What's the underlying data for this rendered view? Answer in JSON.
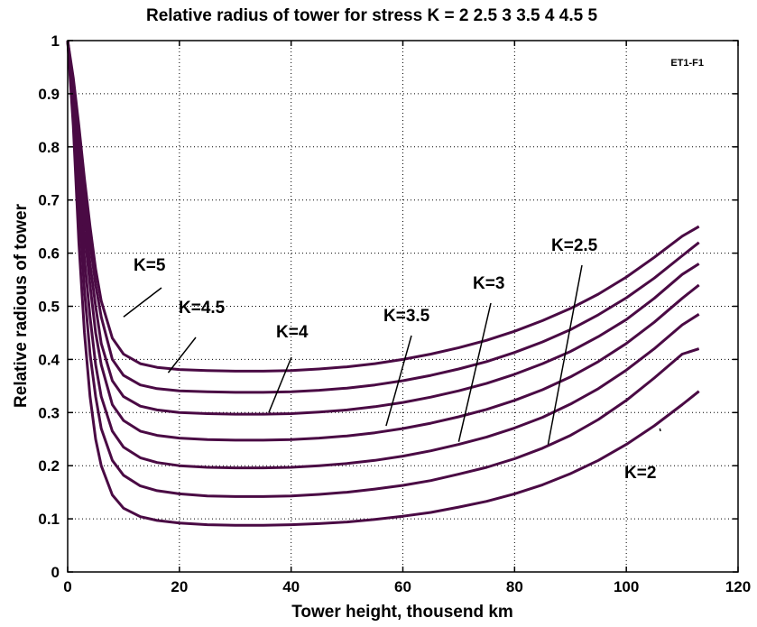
{
  "chart_data": {
    "type": "line",
    "title": "Relative radius of tower for stress K = 2  2.5  3  3.5  4  4.5  5",
    "xlabel": "Tower height, thousend km",
    "ylabel": "Relative radious of tower",
    "id_tag": "ET1-F1",
    "xlim": [
      0,
      120
    ],
    "ylim": [
      0,
      1
    ],
    "x_ticks": [
      0,
      20,
      40,
      60,
      80,
      100,
      120
    ],
    "y_ticks": [
      0,
      0.1,
      0.2,
      0.3,
      0.4,
      0.5,
      0.6,
      0.7,
      0.8,
      0.9,
      1
    ],
    "grid": true,
    "series": [
      {
        "name": "K=2",
        "x": [
          0,
          1,
          2,
          3,
          4,
          5,
          6,
          8,
          10,
          13,
          16,
          20,
          25,
          30,
          35,
          40,
          45,
          50,
          55,
          60,
          65,
          70,
          75,
          80,
          85,
          90,
          95,
          100,
          105,
          110,
          113
        ],
        "y": [
          1,
          0.84,
          0.62,
          0.45,
          0.33,
          0.25,
          0.2,
          0.145,
          0.12,
          0.104,
          0.097,
          0.092,
          0.089,
          0.088,
          0.088,
          0.089,
          0.091,
          0.094,
          0.099,
          0.105,
          0.112,
          0.122,
          0.133,
          0.147,
          0.164,
          0.185,
          0.21,
          0.24,
          0.275,
          0.315,
          0.34
        ]
      },
      {
        "name": "K=2.5",
        "x": [
          0,
          1,
          2,
          3,
          4,
          5,
          6,
          8,
          10,
          13,
          16,
          20,
          25,
          30,
          35,
          40,
          45,
          50,
          55,
          60,
          65,
          70,
          75,
          80,
          85,
          90,
          95,
          100,
          105,
          110,
          113
        ],
        "y": [
          1,
          0.87,
          0.69,
          0.53,
          0.41,
          0.33,
          0.27,
          0.21,
          0.182,
          0.162,
          0.153,
          0.147,
          0.143,
          0.142,
          0.142,
          0.143,
          0.146,
          0.15,
          0.156,
          0.163,
          0.172,
          0.184,
          0.197,
          0.213,
          0.233,
          0.257,
          0.287,
          0.323,
          0.365,
          0.41,
          0.42
        ]
      },
      {
        "name": "K=3",
        "x": [
          0,
          1,
          2,
          3,
          4,
          5,
          6,
          8,
          10,
          13,
          16,
          20,
          25,
          30,
          35,
          40,
          45,
          50,
          55,
          60,
          65,
          70,
          75,
          80,
          85,
          90,
          95,
          100,
          105,
          110,
          113
        ],
        "y": [
          1,
          0.89,
          0.73,
          0.59,
          0.48,
          0.39,
          0.33,
          0.265,
          0.235,
          0.215,
          0.206,
          0.2,
          0.197,
          0.196,
          0.196,
          0.197,
          0.2,
          0.204,
          0.21,
          0.218,
          0.228,
          0.24,
          0.254,
          0.271,
          0.291,
          0.316,
          0.345,
          0.38,
          0.42,
          0.465,
          0.485
        ]
      },
      {
        "name": "K=3.5",
        "x": [
          0,
          1,
          2,
          3,
          4,
          5,
          6,
          8,
          10,
          13,
          16,
          20,
          25,
          30,
          35,
          40,
          45,
          50,
          55,
          60,
          65,
          70,
          75,
          80,
          85,
          90,
          95,
          100,
          105,
          110,
          113
        ],
        "y": [
          1,
          0.9,
          0.77,
          0.64,
          0.54,
          0.45,
          0.39,
          0.315,
          0.285,
          0.265,
          0.257,
          0.252,
          0.249,
          0.248,
          0.248,
          0.249,
          0.252,
          0.256,
          0.262,
          0.27,
          0.28,
          0.292,
          0.306,
          0.323,
          0.343,
          0.367,
          0.396,
          0.43,
          0.47,
          0.515,
          0.54
        ]
      },
      {
        "name": "K=4",
        "x": [
          0,
          1,
          2,
          3,
          4,
          5,
          6,
          8,
          10,
          13,
          16,
          20,
          25,
          30,
          35,
          40,
          45,
          50,
          55,
          60,
          65,
          70,
          75,
          80,
          85,
          90,
          95,
          100,
          105,
          110,
          113
        ],
        "y": [
          1,
          0.91,
          0.8,
          0.68,
          0.58,
          0.5,
          0.43,
          0.36,
          0.33,
          0.312,
          0.305,
          0.3,
          0.298,
          0.297,
          0.297,
          0.298,
          0.301,
          0.305,
          0.311,
          0.319,
          0.329,
          0.341,
          0.355,
          0.372,
          0.392,
          0.415,
          0.443,
          0.475,
          0.515,
          0.56,
          0.58
        ]
      },
      {
        "name": "K=4.5",
        "x": [
          0,
          1,
          2,
          3,
          4,
          5,
          6,
          8,
          10,
          13,
          16,
          20,
          25,
          30,
          35,
          40,
          45,
          50,
          55,
          60,
          65,
          70,
          75,
          80,
          85,
          90,
          95,
          100,
          105,
          110,
          113
        ],
        "y": [
          1,
          0.92,
          0.82,
          0.71,
          0.62,
          0.54,
          0.48,
          0.4,
          0.37,
          0.352,
          0.345,
          0.341,
          0.339,
          0.338,
          0.338,
          0.339,
          0.342,
          0.346,
          0.352,
          0.36,
          0.37,
          0.382,
          0.396,
          0.413,
          0.433,
          0.456,
          0.484,
          0.516,
          0.553,
          0.595,
          0.62
        ]
      },
      {
        "name": "K=5",
        "x": [
          0,
          1,
          2,
          3,
          4,
          5,
          6,
          8,
          10,
          13,
          16,
          20,
          25,
          30,
          35,
          40,
          45,
          50,
          55,
          60,
          65,
          70,
          75,
          80,
          85,
          90,
          95,
          100,
          105,
          110,
          113
        ],
        "y": [
          1,
          0.93,
          0.84,
          0.74,
          0.65,
          0.57,
          0.51,
          0.44,
          0.41,
          0.392,
          0.385,
          0.381,
          0.379,
          0.378,
          0.378,
          0.379,
          0.382,
          0.386,
          0.392,
          0.4,
          0.41,
          0.422,
          0.436,
          0.453,
          0.473,
          0.496,
          0.523,
          0.555,
          0.592,
          0.632,
          0.65
        ]
      }
    ],
    "annotations": [
      {
        "text": "K=5",
        "series": "K=5",
        "at_x": 10,
        "at_y": 0.48
      },
      {
        "text": "K=4.5",
        "series": "K=4.5",
        "at_x": 18,
        "at_y": 0.375
      },
      {
        "text": "K=4",
        "series": "K=4",
        "at_x": 36,
        "at_y": 0.3
      },
      {
        "text": "K=3.5",
        "series": "K=3.5",
        "at_x": 57,
        "at_y": 0.275
      },
      {
        "text": "K=3",
        "series": "K=3",
        "at_x": 70,
        "at_y": 0.245
      },
      {
        "text": "K=2.5",
        "series": "K=2.5",
        "at_x": 86,
        "at_y": 0.24
      },
      {
        "text": "K=2",
        "series": "K=2",
        "at_x": 106,
        "at_y": 0.27
      }
    ]
  }
}
